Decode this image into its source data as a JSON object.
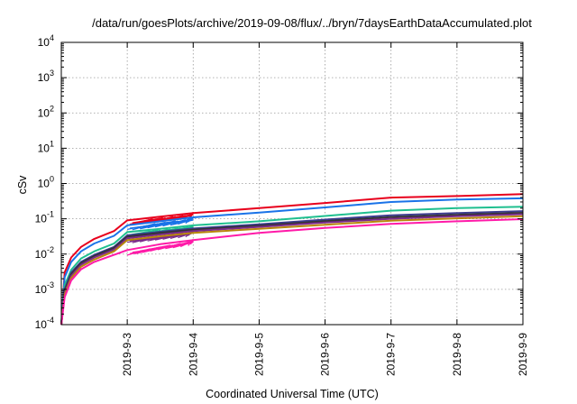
{
  "chart_data": {
    "type": "line",
    "title": "/data/run/goesPlots/archive/2019-09-08/flux/../bryn/7daysEarthDataAccumulated.plot",
    "xlabel": "Coordinated Universal Time (UTC)",
    "ylabel": "cSv",
    "yscale": "log",
    "ylim": [
      0.0001,
      10000
    ],
    "xlim": [
      "2019-9-2",
      "2019-9-9"
    ],
    "grid": true,
    "legend": "none",
    "y_tick_labels": [
      {
        "base": "10",
        "exp": "-4"
      },
      {
        "base": "10",
        "exp": "-3"
      },
      {
        "base": "10",
        "exp": "-2"
      },
      {
        "base": "10",
        "exp": "-1"
      },
      {
        "base": "10",
        "exp": "0"
      },
      {
        "base": "10",
        "exp": "1"
      },
      {
        "base": "10",
        "exp": "2"
      },
      {
        "base": "10",
        "exp": "3"
      },
      {
        "base": "10",
        "exp": "4"
      }
    ],
    "x_tick_labels": [
      "2019-9-3",
      "2019-9-4",
      "2019-9-5",
      "2019-9-6",
      "2019-9-7",
      "2019-9-8",
      "2019-9-9"
    ],
    "x_ticks": [
      1,
      2,
      3,
      4,
      5,
      6,
      7
    ],
    "x_tick_dates": [
      "2019-9-3",
      "2019-9-4",
      "2019-9-5",
      "2019-9-6",
      "2019-9-7",
      "2019-9-8",
      "2019-9-9"
    ],
    "series": [
      {
        "color": "#e8001c",
        "x": [
          0,
          0.05,
          0.15,
          0.3,
          0.5,
          0.8,
          1.0,
          1.5,
          2.0,
          3.0,
          4.0,
          5.0,
          6.0,
          7.0
        ],
        "y": [
          0.0001,
          0.003,
          0.008,
          0.016,
          0.027,
          0.045,
          0.09,
          0.115,
          0.145,
          0.2,
          0.28,
          0.4,
          0.44,
          0.5
        ]
      },
      {
        "color": "#1a73e8",
        "x": [
          0,
          0.05,
          0.15,
          0.3,
          0.5,
          0.8,
          1.0,
          1.5,
          2.0,
          3.0,
          4.0,
          5.0,
          6.0,
          7.0
        ],
        "y": [
          0.0001,
          0.0022,
          0.006,
          0.012,
          0.02,
          0.033,
          0.065,
          0.085,
          0.11,
          0.15,
          0.21,
          0.3,
          0.35,
          0.38
        ]
      },
      {
        "color": "#1fbf8f",
        "x": [
          0,
          0.05,
          0.15,
          0.3,
          0.5,
          0.8,
          1.0,
          1.5,
          2.0,
          3.0,
          4.0,
          5.0,
          6.0,
          7.0
        ],
        "y": [
          0.0001,
          0.0013,
          0.0036,
          0.0075,
          0.012,
          0.02,
          0.042,
          0.052,
          0.065,
          0.085,
          0.12,
          0.17,
          0.2,
          0.22
        ]
      },
      {
        "color": "#3b3b8f",
        "x": [
          0,
          0.05,
          0.15,
          0.3,
          0.5,
          0.8,
          1.0,
          1.5,
          2.0,
          3.0,
          4.0,
          5.0,
          6.0,
          7.0
        ],
        "y": [
          0.0001,
          0.001,
          0.003,
          0.006,
          0.0095,
          0.016,
          0.034,
          0.043,
          0.053,
          0.07,
          0.095,
          0.125,
          0.145,
          0.165
        ]
      },
      {
        "color": "#333333",
        "x": [
          0,
          0.05,
          0.15,
          0.3,
          0.5,
          0.8,
          1.0,
          1.5,
          2.0,
          3.0,
          4.0,
          5.0,
          6.0,
          7.0
        ],
        "y": [
          0.0001,
          0.0009,
          0.0027,
          0.0055,
          0.0088,
          0.015,
          0.031,
          0.04,
          0.049,
          0.064,
          0.086,
          0.112,
          0.13,
          0.148
        ]
      },
      {
        "color": "#7a2a8a",
        "x": [
          0,
          0.05,
          0.15,
          0.3,
          0.5,
          0.8,
          1.0,
          1.5,
          2.0,
          3.0,
          4.0,
          5.0,
          6.0,
          7.0
        ],
        "y": [
          0.0001,
          0.0008,
          0.0024,
          0.005,
          0.008,
          0.0135,
          0.028,
          0.036,
          0.045,
          0.059,
          0.078,
          0.1,
          0.118,
          0.135
        ]
      },
      {
        "color": "#b8860b",
        "x": [
          0,
          0.05,
          0.15,
          0.3,
          0.5,
          0.8,
          1.0,
          1.5,
          2.0,
          3.0,
          4.0,
          5.0,
          6.0,
          7.0
        ],
        "y": [
          0.0001,
          0.0007,
          0.0021,
          0.0044,
          0.007,
          0.012,
          0.025,
          0.032,
          0.04,
          0.052,
          0.068,
          0.088,
          0.103,
          0.118
        ]
      },
      {
        "color": "#ff1aa8",
        "x": [
          0,
          0.05,
          0.15,
          0.3,
          0.5,
          0.8,
          1.0,
          1.5,
          2.0,
          3.0,
          4.0,
          5.0,
          6.0,
          7.0
        ],
        "y": [
          0.0001,
          0.0006,
          0.0018,
          0.0037,
          0.006,
          0.0095,
          0.013,
          0.019,
          0.025,
          0.04,
          0.055,
          0.072,
          0.085,
          0.098
        ]
      }
    ],
    "spikes_region": {
      "x_start": 1.0,
      "x_end": 2.0,
      "colors": [
        "#e8001c",
        "#1a73e8",
        "#1fbf8f",
        "#ff1aa8",
        "#7a2a8a"
      ]
    }
  }
}
